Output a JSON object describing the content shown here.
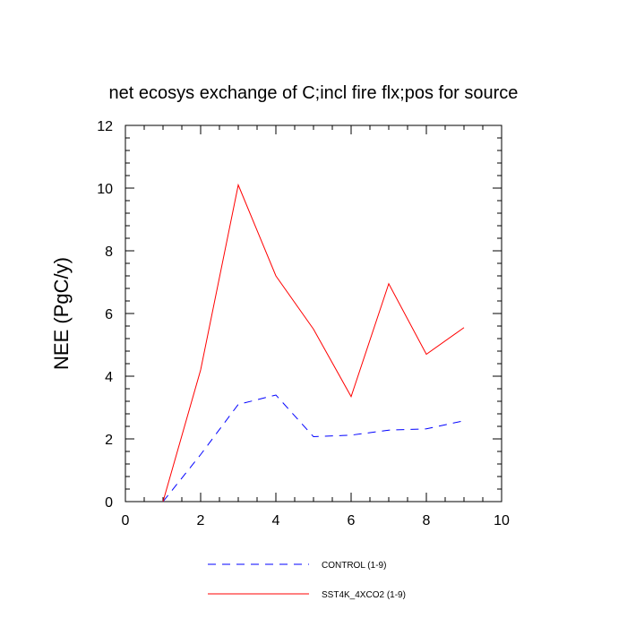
{
  "chart_data": {
    "type": "line",
    "title": "net ecosys exchange of C;incl fire flx;pos for source",
    "xlabel": "",
    "ylabel": "NEE  (PgC/y)",
    "xlim": [
      0,
      10
    ],
    "ylim": [
      0,
      12
    ],
    "x_ticks": [
      0,
      2,
      4,
      6,
      8,
      10
    ],
    "y_ticks": [
      0,
      2,
      4,
      6,
      8,
      10,
      12
    ],
    "grid": false,
    "legend_position": "bottom",
    "x": [
      1,
      2,
      3,
      4,
      5,
      6,
      7,
      8,
      9
    ],
    "series": [
      {
        "name": "CONTROL (1-9)",
        "color": "#0000ff",
        "dash": "dashed",
        "values": [
          0.0,
          1.5,
          3.1,
          3.4,
          2.07,
          2.12,
          2.28,
          2.32,
          2.58
        ]
      },
      {
        "name": "SST4K_4XCO2 (1-9)",
        "color": "#ff0000",
        "dash": "solid",
        "values": [
          0.0,
          4.2,
          10.1,
          7.2,
          5.5,
          3.35,
          6.95,
          4.7,
          5.55
        ]
      }
    ]
  }
}
